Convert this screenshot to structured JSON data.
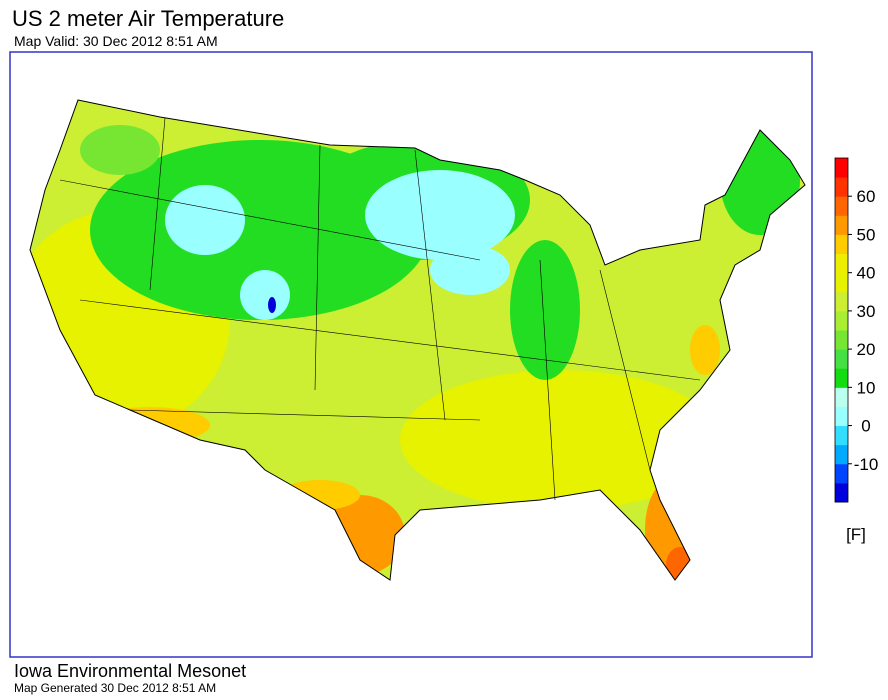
{
  "header": {
    "title": "US 2 meter Air Temperature",
    "subtitle": "Map Valid: 30 Dec 2012 8:51 AM"
  },
  "legend": {
    "range": [
      -20,
      70
    ],
    "ticks": [
      -10,
      0,
      10,
      20,
      30,
      40,
      50,
      60
    ],
    "unit": "[F]",
    "colors": [
      "#0000dd",
      "#0044ff",
      "#00aaff",
      "#33ddff",
      "#99ffff",
      "#bbffee",
      "#11dd11",
      "#44e044",
      "#77e633",
      "#aaee33",
      "#ccee33",
      "#e6f200",
      "#eeee00",
      "#ffcc00",
      "#ff9900",
      "#ff6600",
      "#ff3300",
      "#ff0000"
    ]
  },
  "footer": {
    "org": "Iowa Environmental Mesonet",
    "generated": "Map Generated 30 Dec 2012 8:51 AM"
  }
}
